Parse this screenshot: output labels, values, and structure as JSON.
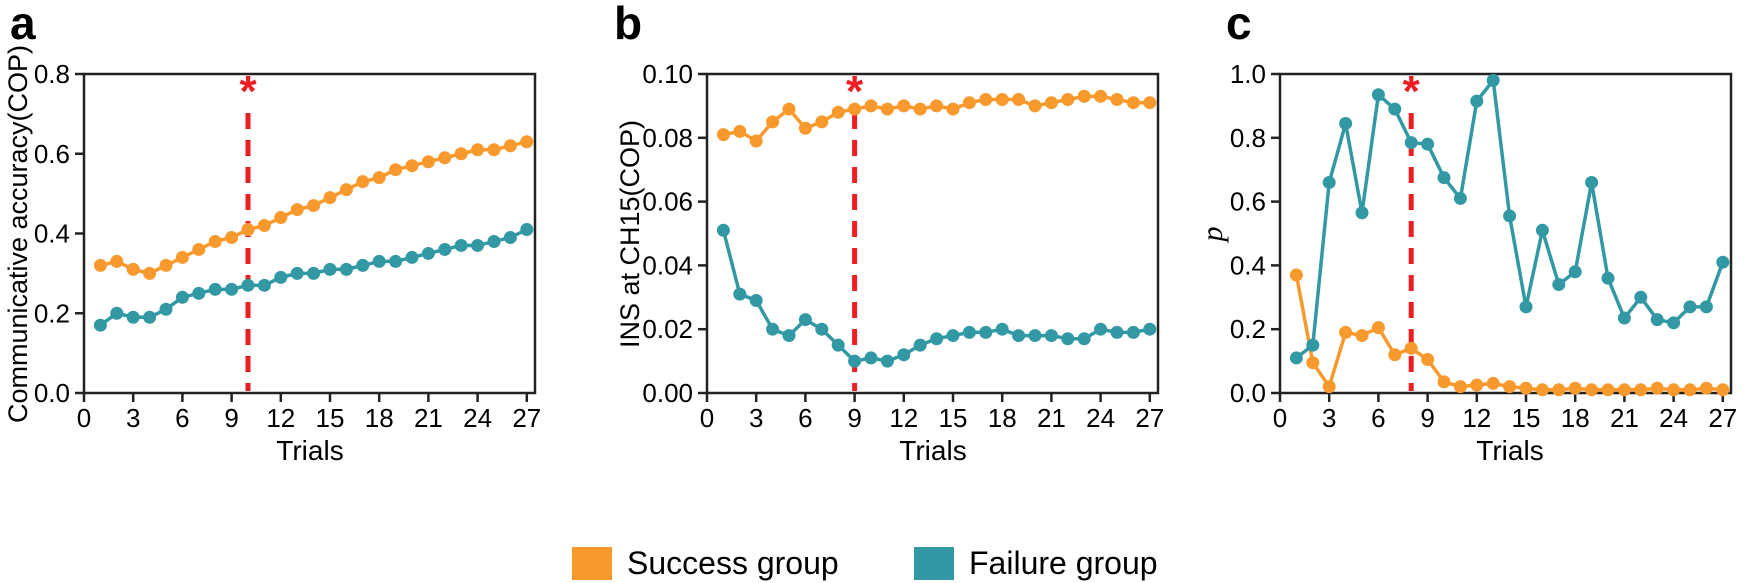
{
  "colors": {
    "success": "#F8992D",
    "failure": "#3299A4",
    "significance": "#EC1E24",
    "axis": "#222222",
    "text": "#000000"
  },
  "legend": {
    "items": [
      {
        "label": "Success group",
        "color_key": "success"
      },
      {
        "label": "Failure group",
        "color_key": "failure"
      }
    ]
  },
  "chart_data": [
    {
      "letter": "a",
      "type": "line",
      "xlabel": "Trials",
      "ylabel": "Communicative accuracy(COP)",
      "xlim": [
        0,
        27.5
      ],
      "ylim": [
        0,
        0.8
      ],
      "xticks": [
        0,
        3,
        6,
        9,
        12,
        15,
        18,
        21,
        24,
        27
      ],
      "yticks": [
        0,
        0.2,
        0.4,
        0.6,
        0.8
      ],
      "ytick_labels": [
        "0.0",
        "0.2",
        "0.4",
        "0.6",
        "0.8"
      ],
      "x": [
        1,
        2,
        3,
        4,
        5,
        6,
        7,
        8,
        9,
        10,
        11,
        12,
        13,
        14,
        15,
        16,
        17,
        18,
        19,
        20,
        21,
        22,
        23,
        24,
        25,
        26,
        27
      ],
      "series": [
        {
          "name": "Success group",
          "color_key": "success",
          "values": [
            0.32,
            0.33,
            0.31,
            0.3,
            0.32,
            0.34,
            0.36,
            0.38,
            0.39,
            0.41,
            0.42,
            0.44,
            0.46,
            0.47,
            0.49,
            0.51,
            0.53,
            0.54,
            0.56,
            0.57,
            0.58,
            0.59,
            0.6,
            0.61,
            0.61,
            0.62,
            0.63
          ]
        },
        {
          "name": "Failure group",
          "color_key": "failure",
          "values": [
            0.17,
            0.2,
            0.19,
            0.19,
            0.21,
            0.24,
            0.25,
            0.26,
            0.26,
            0.27,
            0.27,
            0.29,
            0.3,
            0.3,
            0.31,
            0.31,
            0.32,
            0.33,
            0.33,
            0.34,
            0.35,
            0.36,
            0.37,
            0.37,
            0.38,
            0.39,
            0.41
          ]
        }
      ],
      "significance_marker": {
        "symbol": "*",
        "x": 10
      }
    },
    {
      "letter": "b",
      "type": "line",
      "xlabel": "Trials",
      "ylabel": "INS at CH15(COP)",
      "xlim": [
        0,
        27.5
      ],
      "ylim": [
        0,
        0.1
      ],
      "xticks": [
        0,
        3,
        6,
        9,
        12,
        15,
        18,
        21,
        24,
        27
      ],
      "yticks": [
        0,
        0.02,
        0.04,
        0.06,
        0.08,
        0.1
      ],
      "ytick_labels": [
        "0.00",
        "0.02",
        "0.04",
        "0.06",
        "0.08",
        "0.10"
      ],
      "x": [
        1,
        2,
        3,
        4,
        5,
        6,
        7,
        8,
        9,
        10,
        11,
        12,
        13,
        14,
        15,
        16,
        17,
        18,
        19,
        20,
        21,
        22,
        23,
        24,
        25,
        26,
        27
      ],
      "series": [
        {
          "name": "Success group",
          "color_key": "success",
          "values": [
            0.081,
            0.082,
            0.079,
            0.085,
            0.089,
            0.083,
            0.085,
            0.088,
            0.089,
            0.09,
            0.089,
            0.09,
            0.089,
            0.09,
            0.089,
            0.091,
            0.092,
            0.092,
            0.092,
            0.09,
            0.091,
            0.092,
            0.093,
            0.093,
            0.092,
            0.091,
            0.091
          ]
        },
        {
          "name": "Failure group",
          "color_key": "failure",
          "values": [
            0.051,
            0.031,
            0.029,
            0.02,
            0.018,
            0.023,
            0.02,
            0.015,
            0.01,
            0.011,
            0.01,
            0.012,
            0.015,
            0.017,
            0.018,
            0.019,
            0.019,
            0.02,
            0.018,
            0.018,
            0.018,
            0.017,
            0.017,
            0.02,
            0.019,
            0.019,
            0.02
          ]
        }
      ],
      "significance_marker": {
        "symbol": "*",
        "x": 9
      }
    },
    {
      "letter": "c",
      "type": "line",
      "xlabel": "Trials",
      "ylabel": "p",
      "xlim": [
        0,
        27.5
      ],
      "ylim": [
        0,
        1.0
      ],
      "xticks": [
        0,
        3,
        6,
        9,
        12,
        15,
        18,
        21,
        24,
        27
      ],
      "yticks": [
        0,
        0.2,
        0.4,
        0.6,
        0.8,
        1.0
      ],
      "ytick_labels": [
        "0.0",
        "0.2",
        "0.4",
        "0.6",
        "0.8",
        "1.0"
      ],
      "x": [
        1,
        2,
        3,
        4,
        5,
        6,
        7,
        8,
        9,
        10,
        11,
        12,
        13,
        14,
        15,
        16,
        17,
        18,
        19,
        20,
        21,
        22,
        23,
        24,
        25,
        26,
        27
      ],
      "series": [
        {
          "name": "Success group",
          "color_key": "success",
          "values": [
            0.37,
            0.095,
            0.02,
            0.19,
            0.18,
            0.205,
            0.12,
            0.14,
            0.105,
            0.035,
            0.02,
            0.025,
            0.03,
            0.02,
            0.015,
            0.01,
            0.01,
            0.015,
            0.01,
            0.01,
            0.01,
            0.01,
            0.015,
            0.01,
            0.01,
            0.015,
            0.01
          ]
        },
        {
          "name": "Failure group",
          "color_key": "failure",
          "values": [
            0.11,
            0.15,
            0.66,
            0.845,
            0.565,
            0.935,
            0.89,
            0.785,
            0.78,
            0.675,
            0.61,
            0.915,
            0.98,
            0.555,
            0.27,
            0.51,
            0.34,
            0.38,
            0.66,
            0.36,
            0.235,
            0.3,
            0.23,
            0.22,
            0.27,
            0.27,
            0.41
          ]
        }
      ],
      "significance_marker": {
        "symbol": "*",
        "x": 8
      }
    }
  ]
}
